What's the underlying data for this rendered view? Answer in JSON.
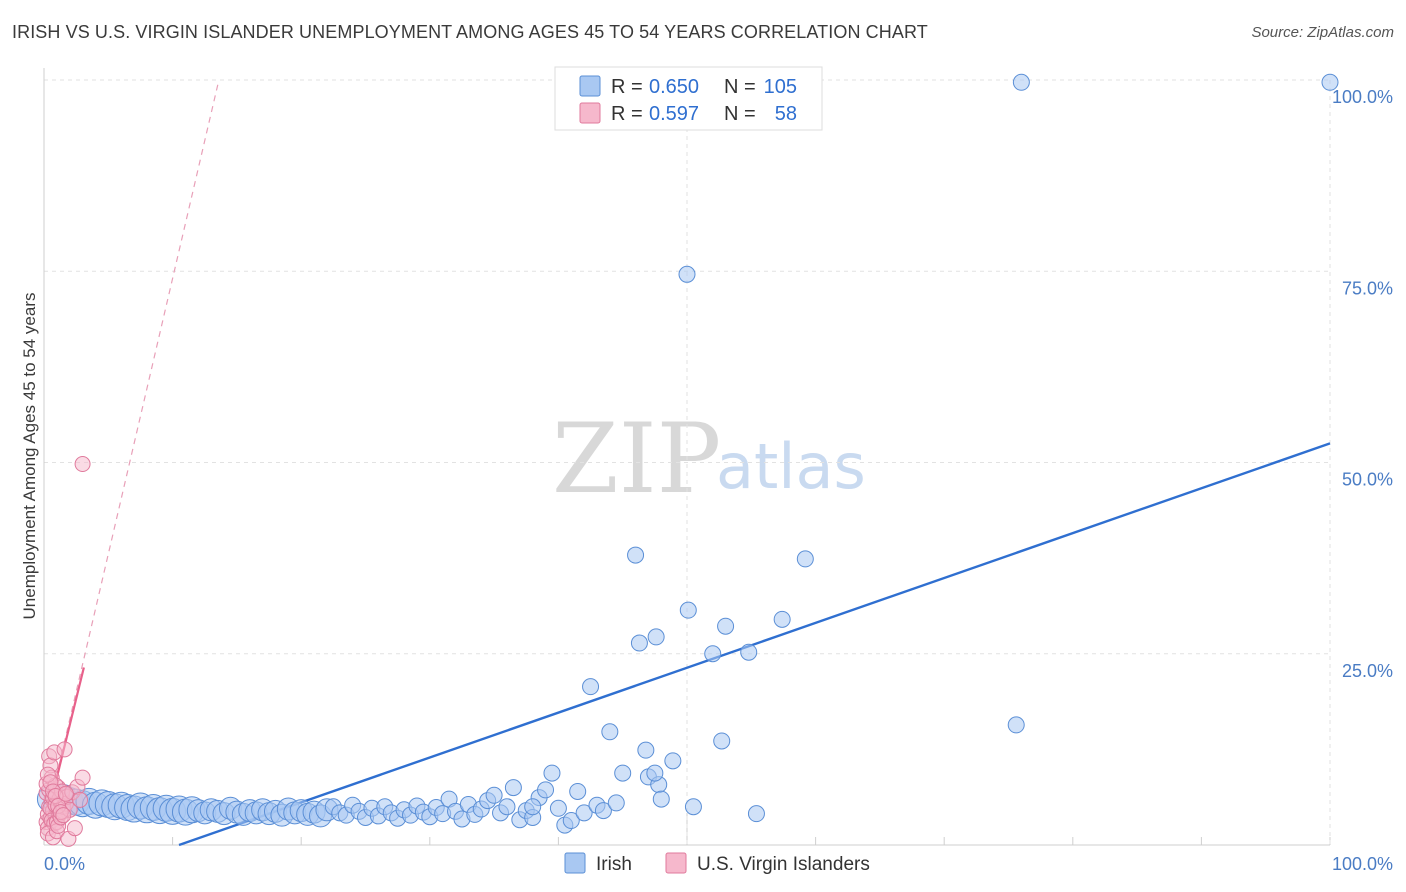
{
  "header": {
    "title": "IRISH VS U.S. VIRGIN ISLANDER UNEMPLOYMENT AMONG AGES 45 TO 54 YEARS CORRELATION CHART",
    "source": "Source: ZipAtlas.com"
  },
  "watermark": {
    "zip": "ZIP",
    "atlas": "atlas"
  },
  "legend": {
    "rows": [
      {
        "r_label": "R =",
        "r_value": "0.650",
        "n_label": "N =",
        "n_value": "105",
        "color": "#a9c8f2"
      },
      {
        "r_label": "R =",
        "r_value": "0.597",
        "n_label": "N =",
        "n_value": "58",
        "color": "#f6b8cc"
      }
    ]
  },
  "bottom_legend": [
    {
      "label": "Irish",
      "color": "#a9c8f2"
    },
    {
      "label": "U.S. Virgin Islanders",
      "color": "#f6b8cc"
    }
  ],
  "chart_data": {
    "type": "scatter",
    "title": "IRISH VS U.S. VIRGIN ISLANDER UNEMPLOYMENT AMONG AGES 45 TO 54 YEARS CORRELATION CHART",
    "xlabel": "",
    "ylabel": "Unemployment Among Ages 45 to 54 years",
    "xlim": [
      0,
      100
    ],
    "ylim": [
      0,
      100
    ],
    "x_tick_labels": [
      {
        "value": 0,
        "label": "0.0%"
      },
      {
        "value": 100,
        "label": "100.0%"
      }
    ],
    "y_tick_labels": [
      {
        "value": 25,
        "label": "25.0%"
      },
      {
        "value": 50,
        "label": "50.0%"
      },
      {
        "value": 75,
        "label": "75.0%"
      },
      {
        "value": 100,
        "label": "100.0%"
      }
    ],
    "grid": true,
    "legend_position": "top-center",
    "series": [
      {
        "name": "Irish",
        "color": "#a9c8f2",
        "stroke": "#5b8fd6",
        "trend": {
          "x": [
            10.5,
            100
          ],
          "y": [
            0,
            52.5
          ],
          "color": "#2f6fd0"
        },
        "points": [
          {
            "x": 0.5,
            "y": 6.0,
            "s": 3
          },
          {
            "x": 1.0,
            "y": 5.5,
            "s": 3
          },
          {
            "x": 1.5,
            "y": 6.2,
            "s": 3
          },
          {
            "x": 2.0,
            "y": 5.8,
            "s": 3
          },
          {
            "x": 2.5,
            "y": 5.6,
            "s": 3
          },
          {
            "x": 3.0,
            "y": 5.4,
            "s": 3
          },
          {
            "x": 3.5,
            "y": 5.7,
            "s": 3
          },
          {
            "x": 4.0,
            "y": 5.2,
            "s": 3
          },
          {
            "x": 4.5,
            "y": 5.5,
            "s": 3
          },
          {
            "x": 5.0,
            "y": 5.3,
            "s": 3
          },
          {
            "x": 5.5,
            "y": 5.0,
            "s": 3
          },
          {
            "x": 6.0,
            "y": 5.2,
            "s": 3
          },
          {
            "x": 6.5,
            "y": 4.9,
            "s": 3
          },
          {
            "x": 7.0,
            "y": 4.7,
            "s": 3
          },
          {
            "x": 7.5,
            "y": 5.1,
            "s": 3
          },
          {
            "x": 8.0,
            "y": 4.6,
            "s": 3
          },
          {
            "x": 8.5,
            "y": 4.9,
            "s": 3
          },
          {
            "x": 9.0,
            "y": 4.5,
            "s": 3
          },
          {
            "x": 9.5,
            "y": 4.8,
            "s": 3
          },
          {
            "x": 10.0,
            "y": 4.4,
            "s": 3
          },
          {
            "x": 10.5,
            "y": 4.7,
            "s": 3
          },
          {
            "x": 11.0,
            "y": 4.3,
            "s": 3
          },
          {
            "x": 11.5,
            "y": 4.6,
            "s": 3
          },
          {
            "x": 12.0,
            "y": 4.5,
            "s": 2
          },
          {
            "x": 12.5,
            "y": 4.2,
            "s": 2
          },
          {
            "x": 13.0,
            "y": 4.6,
            "s": 2
          },
          {
            "x": 13.5,
            "y": 4.4,
            "s": 2
          },
          {
            "x": 14.0,
            "y": 4.1,
            "s": 2
          },
          {
            "x": 14.5,
            "y": 4.8,
            "s": 2
          },
          {
            "x": 15.0,
            "y": 4.3,
            "s": 2
          },
          {
            "x": 15.5,
            "y": 4.0,
            "s": 2
          },
          {
            "x": 16.0,
            "y": 4.5,
            "s": 2
          },
          {
            "x": 16.5,
            "y": 4.2,
            "s": 2
          },
          {
            "x": 17.0,
            "y": 4.6,
            "s": 2
          },
          {
            "x": 17.5,
            "y": 4.1,
            "s": 2
          },
          {
            "x": 18.0,
            "y": 4.4,
            "s": 2
          },
          {
            "x": 18.5,
            "y": 3.9,
            "s": 2
          },
          {
            "x": 19.0,
            "y": 4.7,
            "s": 2
          },
          {
            "x": 19.5,
            "y": 4.2,
            "s": 2
          },
          {
            "x": 20.0,
            "y": 4.5,
            "s": 2
          },
          {
            "x": 20.5,
            "y": 4.0,
            "s": 2
          },
          {
            "x": 21.0,
            "y": 4.3,
            "s": 2
          },
          {
            "x": 21.5,
            "y": 3.8,
            "s": 2
          },
          {
            "x": 22.0,
            "y": 4.6,
            "s": 2
          },
          {
            "x": 22.5,
            "y": 5.0,
            "s": 1
          },
          {
            "x": 23.0,
            "y": 4.2,
            "s": 1
          },
          {
            "x": 23.5,
            "y": 3.9,
            "s": 1
          },
          {
            "x": 24.0,
            "y": 5.2,
            "s": 1
          },
          {
            "x": 24.5,
            "y": 4.4,
            "s": 1
          },
          {
            "x": 25.0,
            "y": 3.6,
            "s": 1
          },
          {
            "x": 25.5,
            "y": 4.8,
            "s": 1
          },
          {
            "x": 26.0,
            "y": 3.8,
            "s": 1
          },
          {
            "x": 26.5,
            "y": 5.0,
            "s": 1
          },
          {
            "x": 27.0,
            "y": 4.2,
            "s": 1
          },
          {
            "x": 27.5,
            "y": 3.5,
            "s": 1
          },
          {
            "x": 28.0,
            "y": 4.6,
            "s": 1
          },
          {
            "x": 28.5,
            "y": 3.9,
            "s": 1
          },
          {
            "x": 29.0,
            "y": 5.1,
            "s": 1
          },
          {
            "x": 29.5,
            "y": 4.3,
            "s": 1
          },
          {
            "x": 30.0,
            "y": 3.7,
            "s": 1
          },
          {
            "x": 30.5,
            "y": 4.9,
            "s": 1
          },
          {
            "x": 31.0,
            "y": 4.1,
            "s": 1
          },
          {
            "x": 31.5,
            "y": 6.0,
            "s": 1
          },
          {
            "x": 32.0,
            "y": 4.4,
            "s": 1
          },
          {
            "x": 32.5,
            "y": 3.4,
            "s": 1
          },
          {
            "x": 33.0,
            "y": 5.3,
            "s": 1
          },
          {
            "x": 33.5,
            "y": 4.0,
            "s": 1
          },
          {
            "x": 34.0,
            "y": 4.7,
            "s": 1
          },
          {
            "x": 34.5,
            "y": 5.8,
            "s": 1
          },
          {
            "x": 35.0,
            "y": 6.5,
            "s": 1
          },
          {
            "x": 35.5,
            "y": 4.2,
            "s": 1
          },
          {
            "x": 36.0,
            "y": 5.0,
            "s": 1
          },
          {
            "x": 36.5,
            "y": 7.5,
            "s": 1
          },
          {
            "x": 37.0,
            "y": 3.3,
            "s": 1
          },
          {
            "x": 37.5,
            "y": 4.5,
            "s": 1
          },
          {
            "x": 38.0,
            "y": 3.6,
            "s": 1
          },
          {
            "x": 38.5,
            "y": 6.2,
            "s": 1
          },
          {
            "x": 39.0,
            "y": 7.2,
            "s": 1
          },
          {
            "x": 39.5,
            "y": 9.4,
            "s": 1
          },
          {
            "x": 40.0,
            "y": 4.8,
            "s": 1
          },
          {
            "x": 40.5,
            "y": 2.6,
            "s": 1
          },
          {
            "x": 41.0,
            "y": 3.2,
            "s": 1
          },
          {
            "x": 41.5,
            "y": 7.0,
            "s": 1
          },
          {
            "x": 42.0,
            "y": 4.2,
            "s": 1
          },
          {
            "x": 42.5,
            "y": 20.7,
            "s": 1
          },
          {
            "x": 43.0,
            "y": 5.2,
            "s": 1
          },
          {
            "x": 43.5,
            "y": 4.5,
            "s": 1
          },
          {
            "x": 44.0,
            "y": 14.8,
            "s": 1
          },
          {
            "x": 44.5,
            "y": 5.5,
            "s": 1
          },
          {
            "x": 45.0,
            "y": 9.4,
            "s": 1
          },
          {
            "x": 46.0,
            "y": 37.9,
            "s": 1
          },
          {
            "x": 46.3,
            "y": 26.4,
            "s": 1
          },
          {
            "x": 46.8,
            "y": 12.4,
            "s": 1
          },
          {
            "x": 47.0,
            "y": 8.9,
            "s": 1
          },
          {
            "x": 47.6,
            "y": 27.2,
            "s": 1
          },
          {
            "x": 47.8,
            "y": 7.9,
            "s": 1
          },
          {
            "x": 47.5,
            "y": 9.4,
            "s": 1
          },
          {
            "x": 48.0,
            "y": 6.0,
            "s": 1
          },
          {
            "x": 48.9,
            "y": 11.0,
            "s": 1
          },
          {
            "x": 50.0,
            "y": 74.6,
            "s": 1
          },
          {
            "x": 50.1,
            "y": 30.7,
            "s": 1
          },
          {
            "x": 50.5,
            "y": 5.0,
            "s": 1
          },
          {
            "x": 52.0,
            "y": 25.0,
            "s": 1
          },
          {
            "x": 52.7,
            "y": 13.6,
            "s": 1
          },
          {
            "x": 53.0,
            "y": 28.6,
            "s": 1
          },
          {
            "x": 54.8,
            "y": 25.2,
            "s": 1
          },
          {
            "x": 55.4,
            "y": 4.1,
            "s": 1
          },
          {
            "x": 57.4,
            "y": 29.5,
            "s": 1
          },
          {
            "x": 59.2,
            "y": 37.4,
            "s": 1
          },
          {
            "x": 75.6,
            "y": 15.7,
            "s": 1
          },
          {
            "x": 76.0,
            "y": 99.7,
            "s": 1
          },
          {
            "x": 100.0,
            "y": 99.7,
            "s": 1
          },
          {
            "x": 38.0,
            "y": 5.0,
            "s": 1
          }
        ]
      },
      {
        "name": "U.S. Virgin Islanders",
        "color": "#f6b8cc",
        "stroke": "#e07a9c",
        "trend_solid": {
          "x": [
            0,
            3.1
          ],
          "y": [
            2.0,
            23.2
          ],
          "color": "#e8608a"
        },
        "trend_dashed": {
          "x": [
            0,
            13.6
          ],
          "y": [
            2.0,
            100
          ],
          "color": "#e8a0b8"
        },
        "points": [
          {
            "x": 0.2,
            "y": 3.0
          },
          {
            "x": 0.3,
            "y": 4.0
          },
          {
            "x": 0.4,
            "y": 5.0
          },
          {
            "x": 0.5,
            "y": 3.5
          },
          {
            "x": 0.6,
            "y": 6.0
          },
          {
            "x": 0.7,
            "y": 4.5
          },
          {
            "x": 0.8,
            "y": 5.5
          },
          {
            "x": 0.9,
            "y": 3.8
          },
          {
            "x": 1.0,
            "y": 6.5
          },
          {
            "x": 1.1,
            "y": 4.2
          },
          {
            "x": 1.2,
            "y": 5.8
          },
          {
            "x": 0.2,
            "y": 6.8
          },
          {
            "x": 0.3,
            "y": 2.2
          },
          {
            "x": 0.4,
            "y": 7.2
          },
          {
            "x": 0.5,
            "y": 4.8
          },
          {
            "x": 0.6,
            "y": 3.2
          },
          {
            "x": 0.7,
            "y": 6.2
          },
          {
            "x": 0.8,
            "y": 2.8
          },
          {
            "x": 0.9,
            "y": 5.2
          },
          {
            "x": 1.0,
            "y": 3.0
          },
          {
            "x": 1.1,
            "y": 7.5
          },
          {
            "x": 1.2,
            "y": 4.0
          },
          {
            "x": 1.3,
            "y": 5.6
          },
          {
            "x": 1.4,
            "y": 6.6
          },
          {
            "x": 1.5,
            "y": 4.4
          },
          {
            "x": 0.2,
            "y": 8.0
          },
          {
            "x": 0.3,
            "y": 1.5
          },
          {
            "x": 0.4,
            "y": 11.6
          },
          {
            "x": 0.5,
            "y": 10.4
          },
          {
            "x": 0.6,
            "y": 8.8
          },
          {
            "x": 0.7,
            "y": 1.0
          },
          {
            "x": 0.8,
            "y": 12.1
          },
          {
            "x": 0.9,
            "y": 7.8
          },
          {
            "x": 1.0,
            "y": 1.8
          },
          {
            "x": 1.1,
            "y": 2.5
          },
          {
            "x": 1.2,
            "y": 6.0
          },
          {
            "x": 1.3,
            "y": 3.6
          },
          {
            "x": 1.4,
            "y": 7.0
          },
          {
            "x": 1.5,
            "y": 5.0
          },
          {
            "x": 1.6,
            "y": 12.5
          },
          {
            "x": 1.7,
            "y": 5.4
          },
          {
            "x": 1.8,
            "y": 6.3
          },
          {
            "x": 1.9,
            "y": 0.8
          },
          {
            "x": 2.0,
            "y": 4.6
          },
          {
            "x": 2.2,
            "y": 6.9
          },
          {
            "x": 2.4,
            "y": 2.2
          },
          {
            "x": 2.6,
            "y": 7.6
          },
          {
            "x": 2.8,
            "y": 5.9
          },
          {
            "x": 3.0,
            "y": 8.8
          },
          {
            "x": 3.0,
            "y": 49.8
          },
          {
            "x": 0.3,
            "y": 9.2
          },
          {
            "x": 0.5,
            "y": 8.2
          },
          {
            "x": 0.7,
            "y": 7.0
          },
          {
            "x": 0.9,
            "y": 6.4
          },
          {
            "x": 1.1,
            "y": 5.1
          },
          {
            "x": 1.3,
            "y": 4.3
          },
          {
            "x": 1.5,
            "y": 3.9
          },
          {
            "x": 1.7,
            "y": 6.7
          }
        ]
      }
    ]
  }
}
